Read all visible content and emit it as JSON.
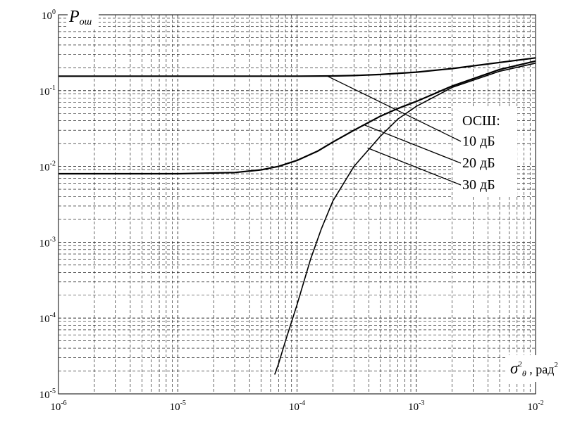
{
  "chart_data": {
    "type": "line",
    "xscale": "log",
    "yscale": "log",
    "xlim": [
      1e-06,
      0.01
    ],
    "ylim": [
      1e-05,
      1
    ],
    "grid": true,
    "x_ticks": [
      {
        "base": "10",
        "exp": "-6",
        "value": 1e-06
      },
      {
        "base": "10",
        "exp": "-5",
        "value": 1e-05
      },
      {
        "base": "10",
        "exp": "-4",
        "value": 0.0001
      },
      {
        "base": "10",
        "exp": "-3",
        "value": 0.001
      },
      {
        "base": "10",
        "exp": "-2",
        "value": 0.01
      }
    ],
    "y_ticks": [
      {
        "base": "10",
        "exp": "0",
        "value": 1
      },
      {
        "base": "10",
        "exp": "-1",
        "value": 0.1
      },
      {
        "base": "10",
        "exp": "-2",
        "value": 0.01
      },
      {
        "base": "10",
        "exp": "-3",
        "value": 0.001
      },
      {
        "base": "10",
        "exp": "-4",
        "value": 0.0001
      },
      {
        "base": "10",
        "exp": "-5",
        "value": 1e-05
      }
    ],
    "ylabel": {
      "main": "P",
      "sub": "ош"
    },
    "xlabel": {
      "main": "σ",
      "sup": "2",
      "sub": "θ",
      "rest": ", рад",
      "rest_sup": "2"
    },
    "annotation_title": "ОСШ:",
    "series": [
      {
        "name": "10 дБ",
        "x": [
          1e-06,
          1e-05,
          0.0001,
          0.0002,
          0.0003,
          0.0005,
          0.001,
          0.002,
          0.005,
          0.01
        ],
        "y": [
          0.155,
          0.155,
          0.155,
          0.156,
          0.158,
          0.163,
          0.175,
          0.195,
          0.235,
          0.27
        ]
      },
      {
        "name": "20 дБ",
        "x": [
          1e-06,
          1e-05,
          3e-05,
          5e-05,
          7e-05,
          0.0001,
          0.00015,
          0.0002,
          0.0003,
          0.0005,
          0.0007,
          0.001,
          0.002,
          0.005,
          0.01
        ],
        "y": [
          0.008,
          0.008,
          0.0083,
          0.009,
          0.01,
          0.012,
          0.016,
          0.021,
          0.03,
          0.046,
          0.058,
          0.072,
          0.115,
          0.19,
          0.245
        ]
      },
      {
        "name": "30 дБ",
        "x": [
          6.5e-05,
          7e-05,
          8e-05,
          0.0001,
          0.00013,
          0.00016,
          0.0002,
          0.0003,
          0.0005,
          0.0007,
          0.001,
          0.002,
          0.005,
          0.01
        ],
        "y": [
          1.8e-05,
          2.5e-05,
          5e-05,
          0.00015,
          0.0006,
          0.0015,
          0.0035,
          0.01,
          0.025,
          0.042,
          0.062,
          0.11,
          0.18,
          0.23
        ]
      }
    ],
    "callouts": [
      {
        "series_index": 0,
        "anchor_x": 0.00018,
        "anchor_y": 0.155
      },
      {
        "series_index": 1,
        "anchor_x": 0.00037,
        "anchor_y": 0.035
      },
      {
        "series_index": 2,
        "anchor_x": 0.00039,
        "anchor_y": 0.0175
      }
    ]
  }
}
